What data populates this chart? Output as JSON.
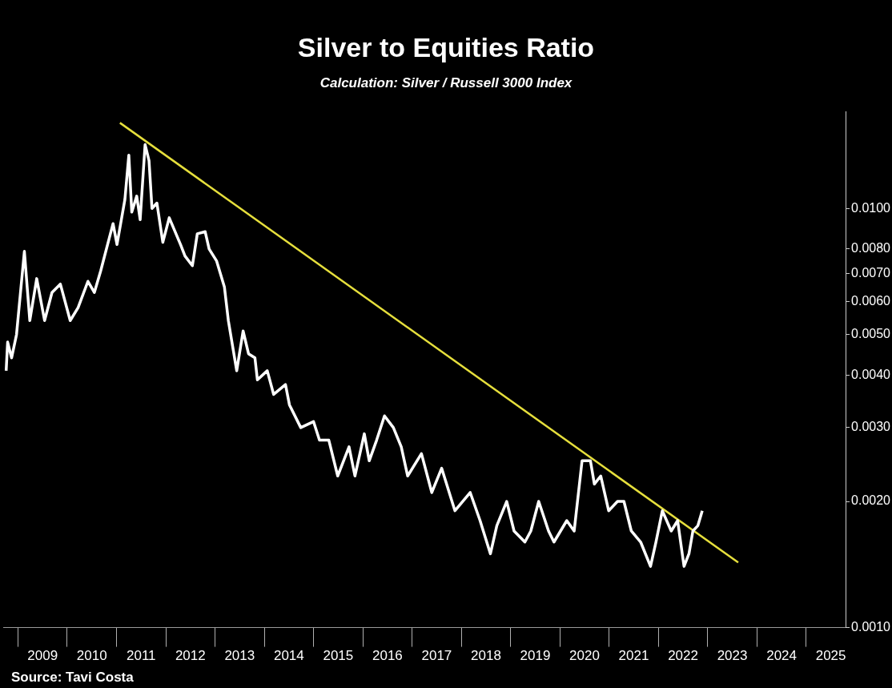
{
  "chart_data": {
    "type": "line",
    "title": "Silver to Equities Ratio",
    "subtitle": "Calculation: Silver / Russell 3000 Index",
    "annotations": [
      "Source: Tavi Costa"
    ],
    "log": "y",
    "marker": "none",
    "line_style": "solid",
    "xlim": [
      2008.7,
      2025.8
    ],
    "xticks": [
      {
        "value": 2009.5,
        "label": "2009"
      },
      {
        "value": 2010.5,
        "label": "2010"
      },
      {
        "value": 2011.5,
        "label": "2011"
      },
      {
        "value": 2012.5,
        "label": "2012"
      },
      {
        "value": 2013.5,
        "label": "2013"
      },
      {
        "value": 2014.5,
        "label": "2014"
      },
      {
        "value": 2015.5,
        "label": "2015"
      },
      {
        "value": 2016.5,
        "label": "2016"
      },
      {
        "value": 2017.5,
        "label": "2017"
      },
      {
        "value": 2018.5,
        "label": "2018"
      },
      {
        "value": 2019.5,
        "label": "2019"
      },
      {
        "value": 2020.5,
        "label": "2020"
      },
      {
        "value": 2021.5,
        "label": "2021"
      },
      {
        "value": 2022.5,
        "label": "2022"
      },
      {
        "value": 2023.5,
        "label": "2023"
      },
      {
        "value": 2024.5,
        "label": "2024"
      },
      {
        "value": 2025.5,
        "label": "2025"
      }
    ],
    "ylim": [
      0.001,
      0.017
    ],
    "yticks": [
      {
        "value": 0.001,
        "label": "0.0010"
      },
      {
        "value": 0.002,
        "label": "0.0020"
      },
      {
        "value": 0.003,
        "label": "0.0030"
      },
      {
        "value": 0.004,
        "label": "0.0040"
      },
      {
        "value": 0.005,
        "label": "0.0050"
      },
      {
        "value": 0.006,
        "label": "0.0060"
      },
      {
        "value": 0.007,
        "label": "0.0070"
      },
      {
        "value": 0.008,
        "label": "0.0080"
      },
      {
        "value": 0.01,
        "label": "0.0100"
      }
    ],
    "series": [
      {
        "type": "line",
        "color": "#ffffff",
        "x": [
          2008.76,
          2008.79,
          2008.87,
          2008.97,
          2009.13,
          2009.24,
          2009.38,
          2009.54,
          2009.69,
          2009.86,
          2010.06,
          2010.22,
          2010.42,
          2010.55,
          2010.68,
          2010.93,
          2011.01,
          2011.17,
          2011.25,
          2011.31,
          2011.41,
          2011.48,
          2011.58,
          2011.66,
          2011.72,
          2011.82,
          2011.94,
          2012.07,
          2012.3,
          2012.39,
          2012.54,
          2012.64,
          2012.8,
          2012.88,
          2013.03,
          2013.19,
          2013.27,
          2013.44,
          2013.57,
          2013.68,
          2013.81,
          2013.86,
          2014.06,
          2014.19,
          2014.43,
          2014.51,
          2014.74,
          2015.0,
          2015.12,
          2015.31,
          2015.49,
          2015.72,
          2015.84,
          2016.03,
          2016.13,
          2016.28,
          2016.44,
          2016.62,
          2016.78,
          2016.91,
          2017.19,
          2017.4,
          2017.6,
          2017.81,
          2017.87,
          2018.18,
          2018.38,
          2018.59,
          2018.72,
          2018.92,
          2019.07,
          2019.29,
          2019.41,
          2019.57,
          2019.77,
          2019.88,
          2020.14,
          2020.29,
          2020.45,
          2020.62,
          2020.7,
          2020.83,
          2020.99,
          2021.17,
          2021.3,
          2021.45,
          2021.64,
          2021.84,
          2021.95,
          2022.08,
          2022.26,
          2022.39,
          2022.52,
          2022.62,
          2022.7,
          2022.8,
          2022.89
        ],
        "values": [
          0.0041,
          0.0048,
          0.0044,
          0.005,
          0.0079,
          0.0054,
          0.0068,
          0.0054,
          0.0063,
          0.0066,
          0.0054,
          0.0058,
          0.0067,
          0.0063,
          0.0071,
          0.0092,
          0.0082,
          0.0105,
          0.0134,
          0.0098,
          0.0107,
          0.0094,
          0.0142,
          0.013,
          0.01,
          0.0103,
          0.0083,
          0.0095,
          0.0082,
          0.0077,
          0.0073,
          0.0087,
          0.0088,
          0.008,
          0.0075,
          0.0065,
          0.0054,
          0.0041,
          0.0051,
          0.0045,
          0.0044,
          0.0039,
          0.0041,
          0.0036,
          0.0038,
          0.0034,
          0.003,
          0.0031,
          0.0028,
          0.0028,
          0.0023,
          0.0027,
          0.0023,
          0.0029,
          0.0025,
          0.0028,
          0.0032,
          0.003,
          0.0027,
          0.0023,
          0.0026,
          0.0021,
          0.0024,
          0.002,
          0.0019,
          0.0021,
          0.0018,
          0.0015,
          0.00175,
          0.002,
          0.0017,
          0.0016,
          0.0017,
          0.002,
          0.0017,
          0.0016,
          0.0018,
          0.0017,
          0.0025,
          0.0025,
          0.0022,
          0.0023,
          0.0019,
          0.002,
          0.002,
          0.0017,
          0.0016,
          0.0014,
          0.0016,
          0.0019,
          0.0017,
          0.0018,
          0.0014,
          0.0015,
          0.0017,
          0.00175,
          0.0019
        ]
      },
      {
        "type": "line",
        "color": "#e6df3c",
        "x": [
          2011.07,
          2023.62
        ],
        "values": [
          0.016,
          0.00143
        ]
      }
    ]
  }
}
